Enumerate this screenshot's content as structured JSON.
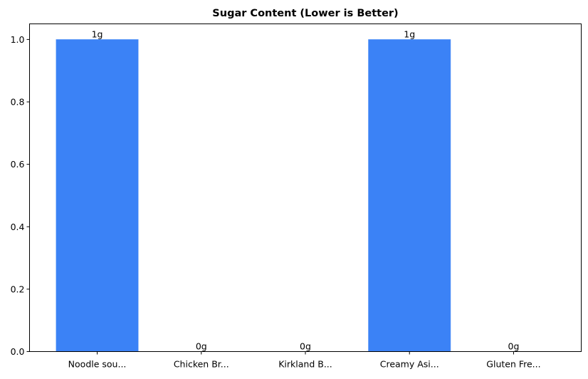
{
  "chart_data": {
    "type": "bar",
    "title": "Sugar Content (Lower is Better)",
    "xlabel": "",
    "ylabel": "",
    "categories": [
      "Noodle sou...",
      "Chicken Br...",
      "Kirkland B...",
      "Creamy Asi...",
      "Gluten Fre..."
    ],
    "values": [
      1,
      0,
      0,
      1,
      0
    ],
    "data_labels": [
      "1g",
      "0g",
      "0g",
      "1g",
      "0g"
    ],
    "ylim": [
      0,
      1.05
    ],
    "yticks": [
      "0.0",
      "0.2",
      "0.4",
      "0.6",
      "0.8",
      "1.0"
    ],
    "grid": false,
    "bar_color": "#3b82f6"
  }
}
